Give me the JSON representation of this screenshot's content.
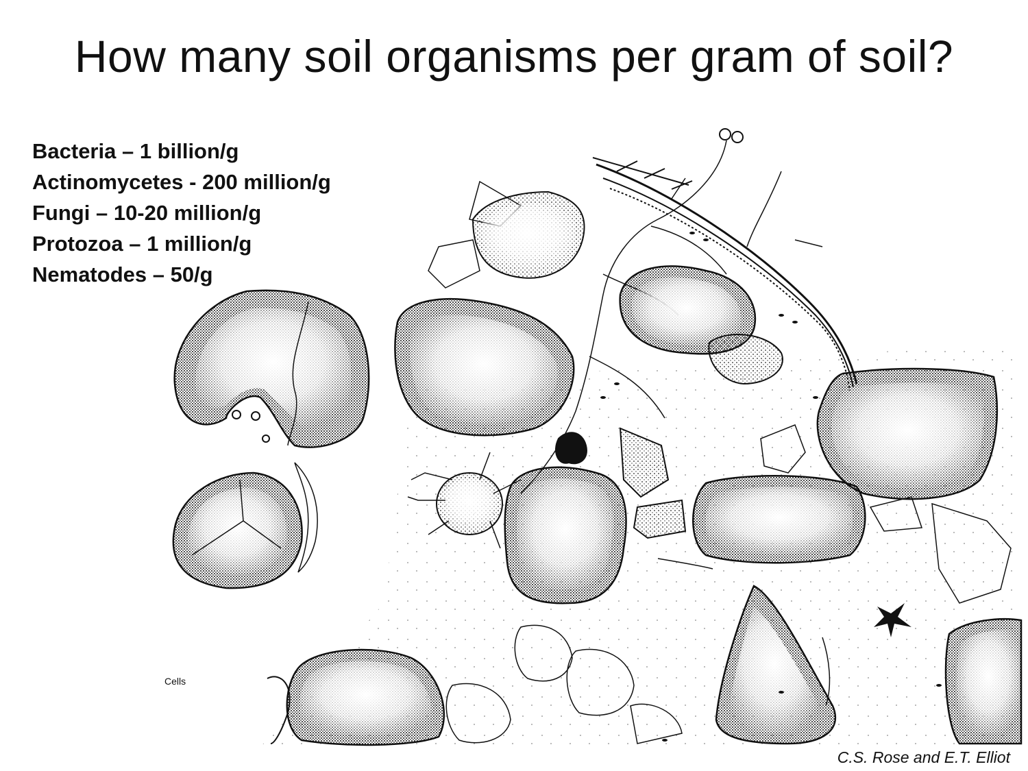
{
  "title": "How many soil organisms per gram of soil?",
  "organism_counts": [
    "Bacteria – 1 billion/g",
    "Actinomycetes - 200 million/g",
    "Fungi – 10-20 million/g",
    "Protozoa – 1 million/g",
    "Nematodes – 50/g"
  ],
  "illustration": {
    "label": "Cells",
    "credit": "C.S. Rose and E.T. Elliot"
  },
  "colors": {
    "ink": "#111111",
    "background": "#ffffff"
  }
}
